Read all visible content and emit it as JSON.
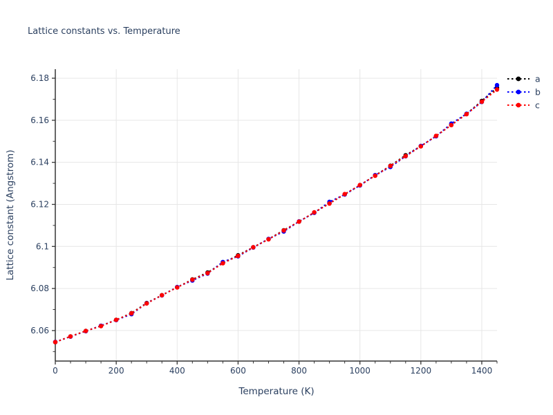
{
  "chart_data": {
    "type": "line",
    "title": "Lattice constants vs. Temperature",
    "xlabel": "Temperature (K)",
    "ylabel": "Lattice constant (Angstrom)",
    "line_style": "dot",
    "marker": "circle",
    "grid": true,
    "legend_position": "outside-top-right",
    "x": [
      0,
      50,
      100,
      150,
      200,
      250,
      300,
      350,
      400,
      450,
      500,
      550,
      600,
      650,
      700,
      750,
      800,
      850,
      900,
      950,
      1000,
      1050,
      1100,
      1150,
      1200,
      1250,
      1300,
      1350,
      1400,
      1450
    ],
    "series": [
      {
        "name": "a",
        "color": "#000000",
        "values": [
          6.0545,
          6.0572,
          6.0598,
          6.0622,
          6.0651,
          6.0683,
          6.0731,
          6.0768,
          6.0806,
          6.0843,
          6.0876,
          6.0921,
          6.0958,
          6.0996,
          6.1035,
          6.1077,
          6.1118,
          6.1161,
          6.1205,
          6.1248,
          6.1291,
          6.1337,
          6.1384,
          6.1434,
          6.1477,
          6.1525,
          6.1578,
          6.163,
          6.1692,
          6.1755
        ]
      },
      {
        "name": "b",
        "color": "#0000ff",
        "values": [
          6.0546,
          6.0571,
          6.0597,
          6.0623,
          6.065,
          6.0678,
          6.073,
          6.0767,
          6.0807,
          6.0838,
          6.0871,
          6.0926,
          6.0953,
          6.0995,
          6.1036,
          6.1071,
          6.1119,
          6.116,
          6.1212,
          6.1247,
          6.129,
          6.1339,
          6.1378,
          6.1429,
          6.1478,
          6.1524,
          6.1584,
          6.1631,
          6.1687,
          6.1767
        ]
      },
      {
        "name": "c",
        "color": "#ff0000",
        "values": [
          6.0545,
          6.0572,
          6.0598,
          6.0621,
          6.0651,
          6.0682,
          6.0729,
          6.0768,
          6.0805,
          6.0842,
          6.0873,
          6.092,
          6.0955,
          6.0996,
          6.1034,
          6.1076,
          6.1118,
          6.1162,
          6.1204,
          6.1249,
          6.1292,
          6.1336,
          6.1383,
          6.143,
          6.1476,
          6.1526,
          6.1577,
          6.1629,
          6.1688,
          6.1746
        ]
      }
    ],
    "axis": {
      "xlim": [
        0,
        1450
      ],
      "ylim": [
        6.0455,
        6.1843
      ],
      "xticks_major": [
        0,
        200,
        400,
        600,
        800,
        1000,
        1200,
        1400
      ],
      "xtick_labels": [
        "0",
        "200",
        "400",
        "600",
        "800",
        "1000",
        "1200",
        "1400"
      ],
      "x_minor_step": 50,
      "yticks_major": [
        6.06,
        6.08,
        6.1,
        6.12,
        6.14,
        6.16,
        6.18
      ],
      "ytick_labels": [
        "6.06",
        "6.08",
        "6.1",
        "6.12",
        "6.14",
        "6.16",
        "6.18"
      ],
      "y_minor_step": 0.01
    },
    "colors": {
      "text": "#2a3f5f",
      "grid": "#e6e6e6",
      "axis_line": "#333333",
      "background": "#ffffff"
    }
  }
}
